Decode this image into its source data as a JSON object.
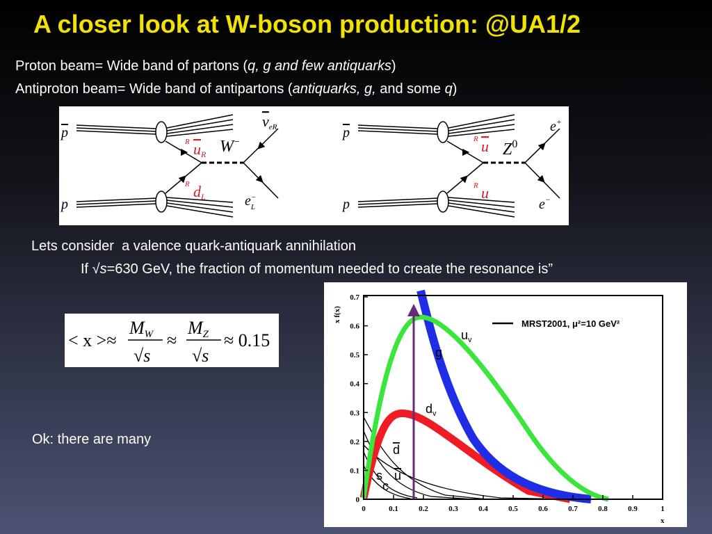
{
  "title": "A closer look at W-boson production: @UA1/2",
  "beam_lines": [
    [
      "Proton beam= Wide band of partons (",
      "q, g and few antiquarks",
      ")"
    ],
    [
      "Antiproton beam= Wide band of antipartons (",
      "antiquarks, g,",
      " and some ",
      "q",
      ")"
    ]
  ],
  "diagrams": [
    {
      "top_in": "p",
      "bottom_in": "p",
      "top_chirality": "R",
      "top_quark": "u",
      "top_quark_sub": "R",
      "bottom_chirality": "R",
      "bottom_quark": "d",
      "bottom_quark_sub": "L",
      "boson": "W",
      "boson_sup": "−",
      "top_lepton": "ν",
      "top_lepton_sub": "eR",
      "bottom_lepton": "e",
      "bottom_lepton_sub": "L",
      "bottom_lepton_sup": "−"
    },
    {
      "top_in": "p",
      "bottom_in": "p",
      "top_chirality": "R",
      "top_quark": "u",
      "bottom_chirality": "R",
      "bottom_quark": "u",
      "boson": "Z",
      "boson_sup": "0",
      "top_lepton": "e",
      "top_lepton_sup": "+",
      "bottom_lepton": "e",
      "bottom_lepton_sup": "−"
    }
  ],
  "consider": "Lets consider  a valence quark-antiquark annihilation",
  "sqrt_line": [
    "If √",
    "s",
    "=630 GeV, the fraction of momentum needed to create the resonance is”"
  ],
  "formula": {
    "lhs": "< x >≈",
    "fractions": [
      {
        "num": "M",
        "sub": "W",
        "den": "√s"
      },
      {
        "num": "M",
        "sub": "Z",
        "den": "√s"
      }
    ],
    "approx": "≈",
    "rhs": "≈ 0.15"
  },
  "note": "Ok: there are many",
  "plot": {
    "ylabel": "x f(x)",
    "xlabel": "x",
    "legend": "MRST2001, μ²=10 GeV²",
    "xlim": [
      0,
      1
    ],
    "ylim": [
      0,
      0.7
    ],
    "xticks": [
      0,
      0.1,
      0.2,
      0.3,
      0.4,
      0.5,
      0.6,
      0.7,
      0.8,
      0.9,
      1
    ],
    "yticks": [
      0,
      0.1,
      0.2,
      0.3,
      0.4,
      0.5,
      0.6,
      0.7
    ],
    "curve_labels": [
      {
        "text": "u",
        "sub": "v"
      },
      {
        "text": "g"
      },
      {
        "text": "d",
        "sub": "v"
      },
      {
        "text": "d"
      },
      {
        "text": "u"
      },
      {
        "text": "s"
      },
      {
        "text": "c"
      }
    ]
  }
}
